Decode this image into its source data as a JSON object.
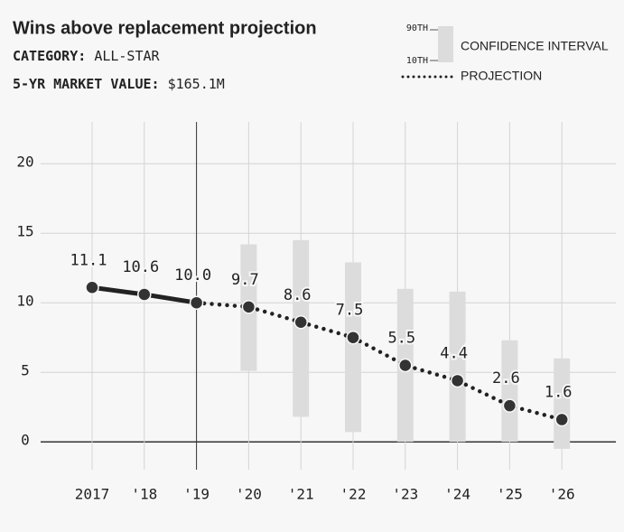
{
  "chart_data": {
    "type": "line",
    "title": "Wins above replacement projection",
    "subtitle_lines": [
      {
        "label": "CATEGORY:",
        "value": "ALL-STAR"
      },
      {
        "label": "5-YR MARKET VALUE:",
        "value": "$165.1M"
      }
    ],
    "legend": {
      "interval_name": "CONFIDENCE INTERVAL",
      "high_label": "90TH",
      "low_label": "10TH",
      "line_name": "PROJECTION"
    },
    "categories": [
      "2017",
      "'18",
      "'19",
      "'20",
      "'21",
      "'22",
      "'23",
      "'24",
      "'25",
      "'26"
    ],
    "values": [
      11.1,
      10.6,
      10.0,
      9.7,
      8.6,
      7.5,
      5.5,
      4.4,
      2.6,
      1.6
    ],
    "value_labels": [
      "11.1",
      "10.6",
      "10.0",
      "9.7",
      "8.6",
      "7.5",
      "5.5",
      "4.4",
      "2.6",
      "1.6"
    ],
    "interval": {
      "low": [
        null,
        null,
        null,
        5.1,
        1.8,
        0.7,
        0,
        0,
        0,
        -0.5
      ],
      "high": [
        null,
        null,
        null,
        14.2,
        14.5,
        12.9,
        11.0,
        10.8,
        7.3,
        6.0
      ]
    },
    "divider_index": 2,
    "color": "#222222",
    "interval_color": "#dcdcdc",
    "ylim": [
      -2,
      23
    ],
    "yticks": [
      0,
      5,
      10,
      15,
      20
    ],
    "grid": true
  }
}
